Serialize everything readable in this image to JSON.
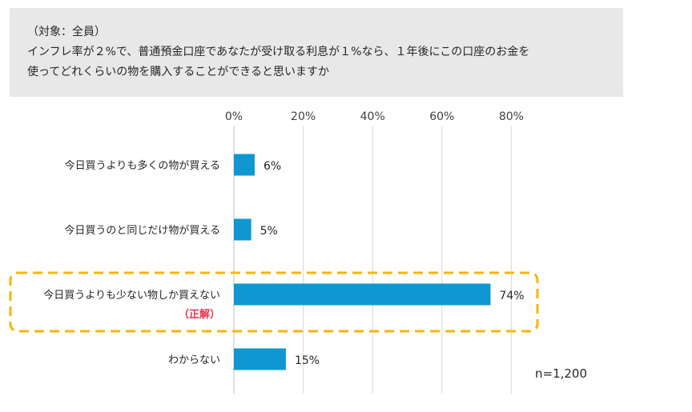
{
  "question": {
    "target": "（対象：全員）",
    "line1": "インフレ率が２%で、普通預金口座であなたが受け取る利息が１%なら、１年後にこの口座のお金を",
    "line2": "使ってどれくらいの物を購入することができると思いますか"
  },
  "chart_data": {
    "type": "bar",
    "orientation": "horizontal",
    "categories": [
      "今日買うよりも多くの物が買える",
      "今日買うのと同じだけ物が買える",
      "今日買うよりも少ない物しか買えない",
      "わからない"
    ],
    "values": [
      6,
      5,
      74,
      15
    ],
    "value_labels": [
      "6%",
      "5%",
      "74%",
      "15%"
    ],
    "x_ticks": [
      "0%",
      "20%",
      "40%",
      "60%",
      "80%"
    ],
    "xlim": [
      0,
      80
    ],
    "grid": true,
    "highlight": {
      "index": 2,
      "note": "（正解）"
    },
    "colors": {
      "bar": "#0e97d1",
      "highlight_border": "#f5b70c",
      "note": "#e8334a"
    }
  },
  "sample_size": "n=1,200"
}
